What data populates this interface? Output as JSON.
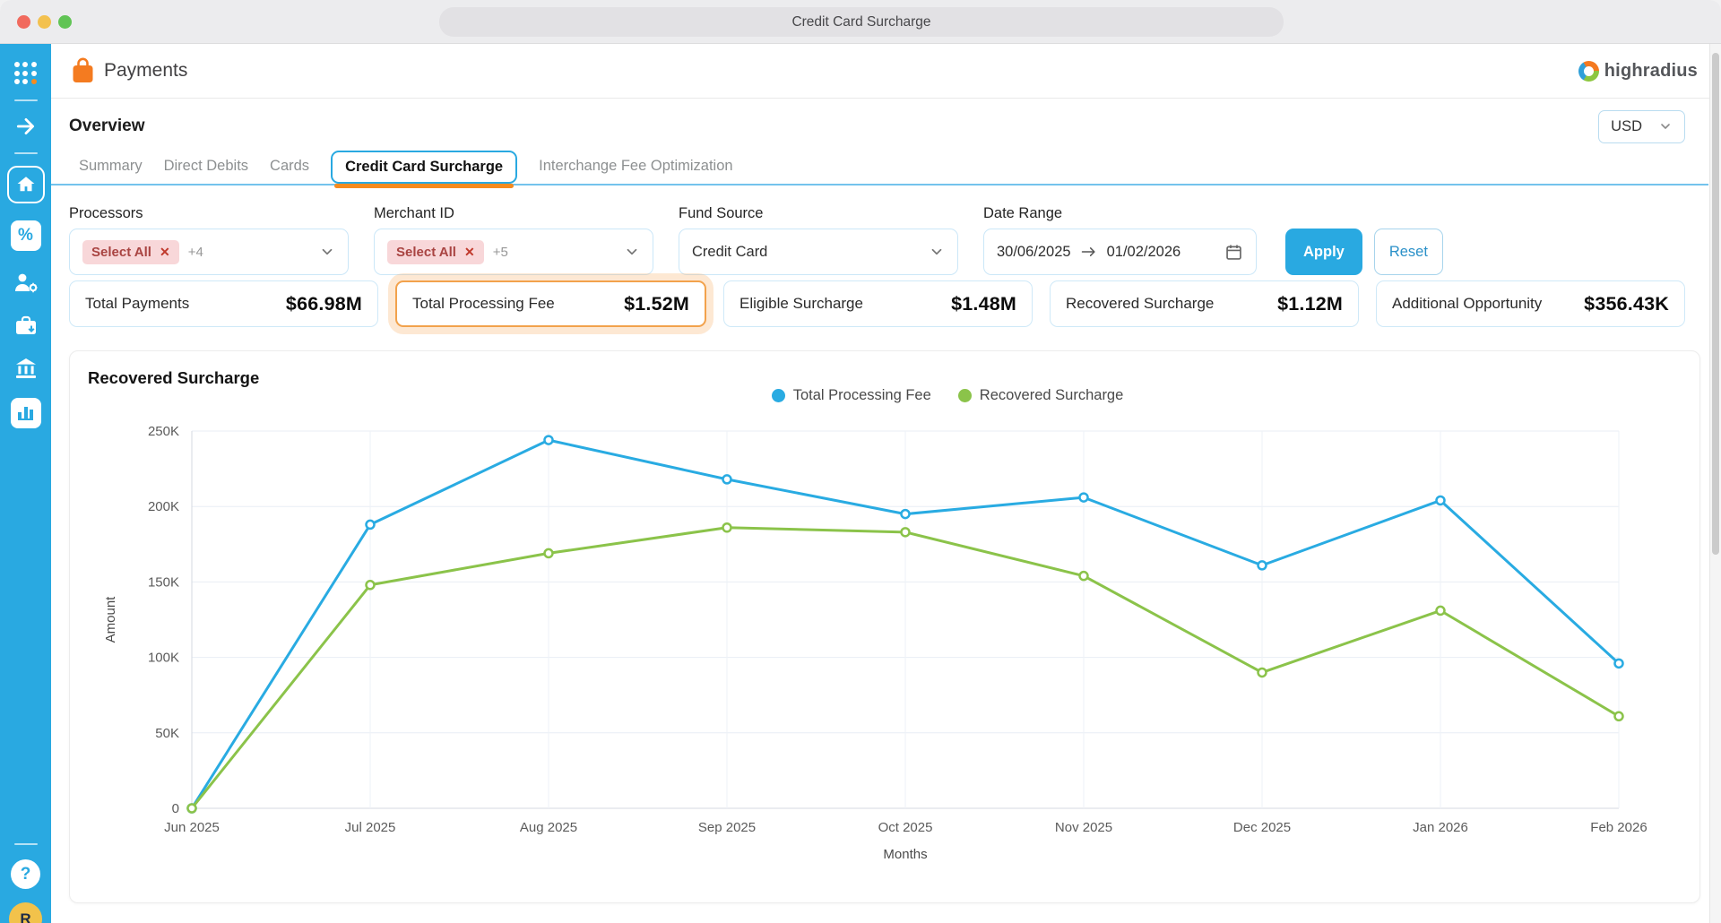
{
  "window": {
    "title": "Credit Card Surcharge"
  },
  "sidebar": {
    "icons": [
      "apps-grid",
      "arrow-right",
      "home",
      "percent",
      "user-settings",
      "briefcase-export",
      "bank",
      "bar-chart"
    ],
    "help_glyph": "?",
    "avatar_initial": "R",
    "bg_color": "#29a9e1"
  },
  "app_header": {
    "app_name": "Payments",
    "brand_name": "highradius"
  },
  "overview": {
    "title": "Overview",
    "currency": "USD"
  },
  "tabs": {
    "items": [
      {
        "label": "Summary",
        "active": false
      },
      {
        "label": "Direct Debits",
        "active": false
      },
      {
        "label": "Cards",
        "active": false
      },
      {
        "label": "Credit Card Surcharge",
        "active": true
      },
      {
        "label": "Interchange Fee Optimization",
        "active": false
      }
    ]
  },
  "filters": {
    "processors": {
      "label": "Processors",
      "chip": "Select All",
      "remove_icon": "✕",
      "more": "+4"
    },
    "merchant_id": {
      "label": "Merchant ID",
      "chip": "Select All",
      "remove_icon": "✕",
      "more": "+5"
    },
    "fund_source": {
      "label": "Fund Source",
      "value": "Credit Card"
    },
    "date_range": {
      "label": "Date Range",
      "start": "30/06/2025",
      "end": "01/02/2026"
    },
    "apply_label": "Apply",
    "reset_label": "Reset"
  },
  "kpis": [
    {
      "label": "Total Payments",
      "value": "$66.98M"
    },
    {
      "label": "Total Processing Fee",
      "value": "$1.52M"
    },
    {
      "label": "Eligible Surcharge",
      "value": "$1.48M"
    },
    {
      "label": "Recovered Surcharge",
      "value": "$1.12M"
    },
    {
      "label": "Additional Opportunity",
      "value": "$356.43K"
    }
  ],
  "highlight": {
    "kpi_index": 1,
    "ring_color": "#f2a24c"
  },
  "chart_data": {
    "type": "line",
    "title": "Recovered Surcharge",
    "x": [
      "Jun 2025",
      "Jul 2025",
      "Aug 2025",
      "Sep 2025",
      "Oct 2025",
      "Nov 2025",
      "Dec 2025",
      "Jan 2026",
      "Feb 2026"
    ],
    "series": [
      {
        "name": "Total Processing Fee",
        "color": "#29abe2",
        "values": [
          0,
          188000,
          244000,
          218000,
          195000,
          206000,
          161000,
          204000,
          96000
        ]
      },
      {
        "name": "Recovered Surcharge",
        "color": "#8bc34a",
        "values": [
          0,
          148000,
          169000,
          186000,
          183000,
          154000,
          90000,
          131000,
          61000
        ]
      }
    ],
    "xlabel": "Months",
    "ylabel": "Amount",
    "ylim": [
      0,
      250000
    ],
    "y_ticks": [
      "0",
      "50K",
      "100K",
      "150K",
      "200K",
      "250K"
    ],
    "grid": true,
    "legend_position": "top-center",
    "point_style": "open-circle"
  }
}
